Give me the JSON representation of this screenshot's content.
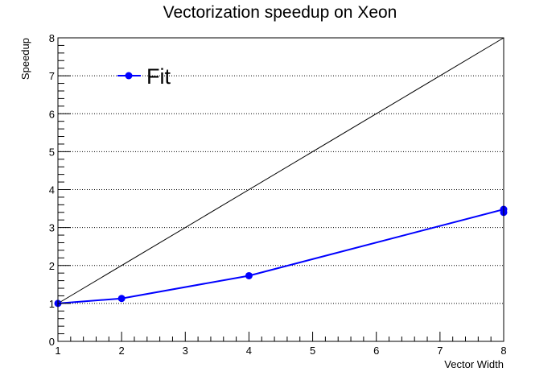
{
  "chart_data": {
    "type": "line",
    "title": "Vectorization speedup on Xeon",
    "xlabel": "Vector Width",
    "ylabel": "Speedup",
    "xlim": [
      1,
      8
    ],
    "ylim": [
      0,
      8
    ],
    "x_ticks": [
      1,
      2,
      3,
      4,
      5,
      6,
      7,
      8
    ],
    "y_ticks": [
      0,
      1,
      2,
      3,
      4,
      5,
      6,
      7,
      8
    ],
    "grid": {
      "x": false,
      "y": true,
      "style": "dotted"
    },
    "legend": {
      "position": "top-left",
      "entries": [
        "Fit"
      ]
    },
    "series": [
      {
        "name": "Fit",
        "color": "#0000ff",
        "marker": "circle",
        "points": [
          {
            "x": 1,
            "y": 1.0
          },
          {
            "x": 2,
            "y": 1.13
          },
          {
            "x": 4,
            "y": 1.73
          },
          {
            "x": 8,
            "y": 3.48
          },
          {
            "x": 8,
            "y": 3.4
          }
        ]
      }
    ],
    "reference_line": {
      "color": "#000000",
      "points": [
        {
          "x": 1,
          "y": 1
        },
        {
          "x": 8,
          "y": 8
        }
      ]
    }
  }
}
